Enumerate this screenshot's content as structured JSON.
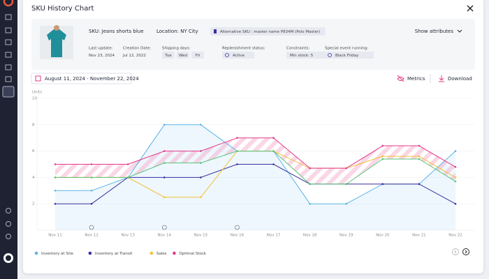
{
  "header": {
    "title": "SKU History Chart"
  },
  "product": {
    "sku": "SKU: Jeans shorts blue",
    "location": "Location:  NY City",
    "alternative_sku": "Alternative SKU : master name P834M (Polo Master)",
    "show_attributes": "Show attributes"
  },
  "details": [
    {
      "label": "Last update:",
      "value": "Nov 23, 2024"
    },
    {
      "label": "Creation Date:",
      "value": "Jul 12, 2022"
    },
    {
      "label": "Shipping days:",
      "values": [
        "Tue",
        "Wed",
        "Fri"
      ]
    },
    {
      "label": "Replenishment status:",
      "value": "Active"
    },
    {
      "label": "Constraints:",
      "value": "Min stock: 5"
    },
    {
      "label": "Special event running:",
      "value": "Black Friday"
    }
  ],
  "toolbar": {
    "date_range": "August 11, 2024 - November 22, 2024",
    "metrics": "Metrics",
    "download": "Download"
  },
  "chart_data": {
    "type": "line",
    "y_label": "Units",
    "categories": [
      "Nov 11",
      "Nov 12",
      "Nov 13",
      "Nov 14",
      "Nov 15",
      "Nov 16",
      "Nov 17",
      "Nov 18",
      "Nov 19",
      "Nov 20",
      "Nov 21",
      "Nov 22"
    ],
    "series": [
      {
        "name": "Inventory at Site",
        "color": "#5bb4e8",
        "values": [
          3,
          3,
          4,
          8,
          8,
          6,
          6,
          2,
          2,
          3.5,
          3.5,
          6
        ]
      },
      {
        "name": "Inventory at Transit",
        "color": "#3b2f9e",
        "values": [
          2,
          2,
          4,
          4,
          4,
          5,
          5,
          3.5,
          3.5,
          3.5,
          3.5,
          2
        ]
      },
      {
        "name": "Sales",
        "color": "#f2c037",
        "values": [
          4,
          4,
          4,
          2.5,
          2.5,
          6,
          6,
          4.7,
          4.7,
          5.6,
          5.6,
          4
        ]
      },
      {
        "name": "Optimal Stock",
        "color": "#e3388b",
        "values": [
          5,
          5,
          5,
          6,
          6,
          7,
          7,
          4.7,
          4.7,
          6.4,
          6.4,
          4.8
        ]
      },
      {
        "color": "#5cc27a",
        "values": [
          4,
          4,
          4,
          5.1,
          5.1,
          6,
          6,
          3.5,
          3.5,
          5.4,
          5.4,
          3.7
        ]
      }
    ],
    "ylim": [
      0,
      10
    ],
    "yticks": [
      2,
      4,
      6,
      8,
      10
    ],
    "grid": true,
    "legend": "bottom-left"
  }
}
